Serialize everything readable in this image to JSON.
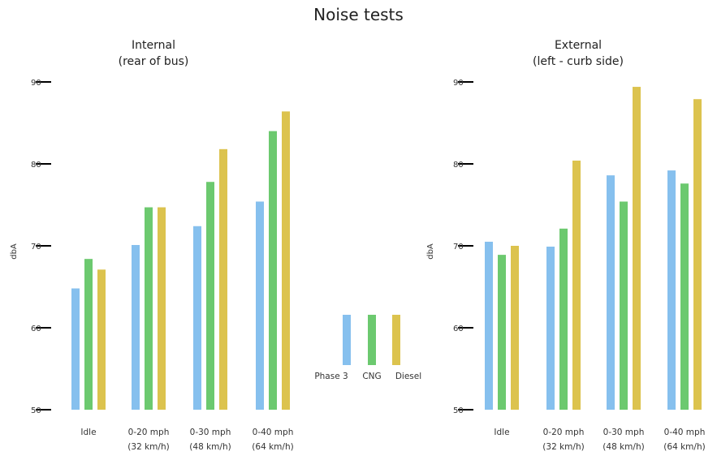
{
  "title": "Noise tests",
  "colors": {
    "Phase 3": "#86c0ee",
    "CNG": "#6cc96f",
    "Diesel": "#dcc34e"
  },
  "legend": [
    "Phase 3",
    "CNG",
    "Diesel"
  ],
  "chart_data": [
    {
      "type": "bar",
      "title_lines": [
        "Internal",
        "(rear of bus)"
      ],
      "ylabel": "dbA",
      "ylim": [
        50,
        90
      ],
      "yticks": [
        "50",
        "60",
        "70",
        "80",
        "90"
      ],
      "categories": [
        [
          "Idle"
        ],
        [
          "0-20 mph",
          "(32 km/h)"
        ],
        [
          "0-30 mph",
          "(48 km/h)"
        ],
        [
          "0-40 mph",
          "(64 km/h)"
        ]
      ],
      "series": [
        {
          "name": "Phase 3",
          "values": [
            64.8,
            70.1,
            72.4,
            75.4
          ]
        },
        {
          "name": "CNG",
          "values": [
            68.4,
            74.7,
            77.8,
            84.0
          ]
        },
        {
          "name": "Diesel",
          "values": [
            67.1,
            74.7,
            81.8,
            86.4
          ]
        }
      ]
    },
    {
      "type": "bar",
      "title_lines": [
        "External",
        "(left - curb side)"
      ],
      "ylabel": "dbA",
      "ylim": [
        50,
        90
      ],
      "yticks": [
        "50",
        "60",
        "70",
        "80",
        "90"
      ],
      "categories": [
        [
          "Idle"
        ],
        [
          "0-20 mph",
          "(32 km/h)"
        ],
        [
          "0-30 mph",
          "(48 km/h)"
        ],
        [
          "0-40 mph",
          "(64 km/h)"
        ]
      ],
      "series": [
        {
          "name": "Phase 3",
          "values": [
            70.5,
            69.9,
            78.6,
            79.2
          ]
        },
        {
          "name": "CNG",
          "values": [
            68.9,
            72.1,
            75.4,
            77.6
          ]
        },
        {
          "name": "Diesel",
          "values": [
            70.0,
            80.4,
            89.4,
            87.9
          ]
        }
      ]
    }
  ]
}
